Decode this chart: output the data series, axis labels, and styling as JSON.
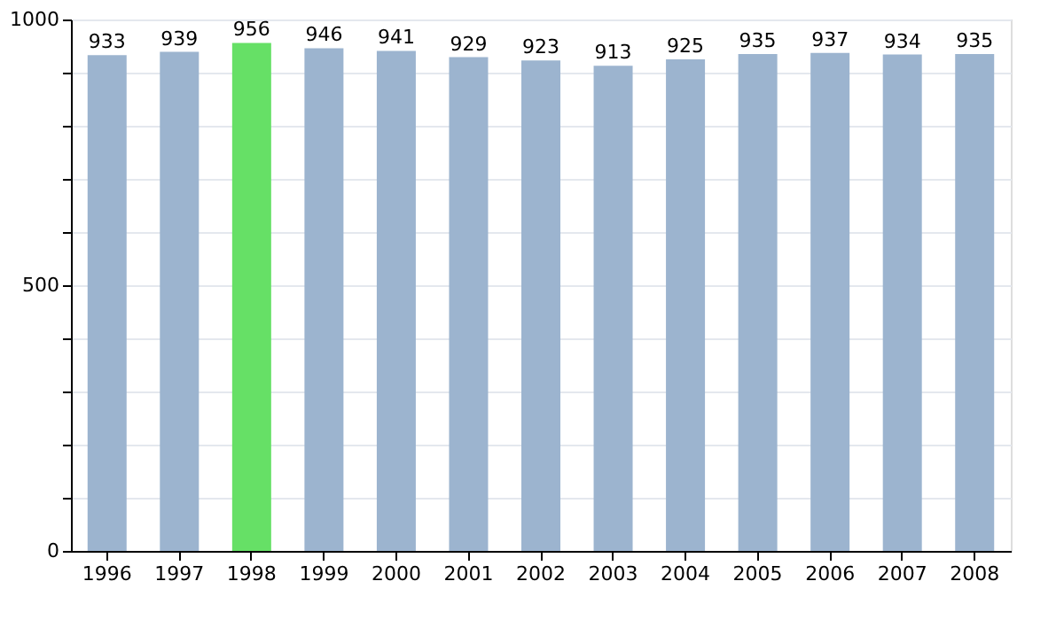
{
  "chart_data": {
    "type": "bar",
    "categories": [
      "1996",
      "1997",
      "1998",
      "1999",
      "2000",
      "2001",
      "2002",
      "2003",
      "2004",
      "2005",
      "2006",
      "2007",
      "2008"
    ],
    "values": [
      933,
      939,
      956,
      946,
      941,
      929,
      923,
      913,
      925,
      935,
      937,
      934,
      935
    ],
    "colors": [
      "#9cb4cf",
      "#9cb4cf",
      "#66e066",
      "#9cb4cf",
      "#9cb4cf",
      "#9cb4cf",
      "#9cb4cf",
      "#9cb4cf",
      "#9cb4cf",
      "#9cb4cf",
      "#9cb4cf",
      "#9cb4cf",
      "#9cb4cf"
    ],
    "ylim": [
      0,
      1000
    ],
    "yticks": [
      0,
      {
        "value": 100,
        "label": null
      },
      {
        "value": 200,
        "label": null
      },
      {
        "value": 300,
        "label": null
      },
      {
        "value": 400,
        "label": null
      },
      500,
      {
        "value": 600,
        "label": null
      },
      {
        "value": 700,
        "label": null
      },
      {
        "value": 800,
        "label": null
      },
      {
        "value": 900,
        "label": null
      },
      1000
    ],
    "grid": "y",
    "data_labels": true
  }
}
